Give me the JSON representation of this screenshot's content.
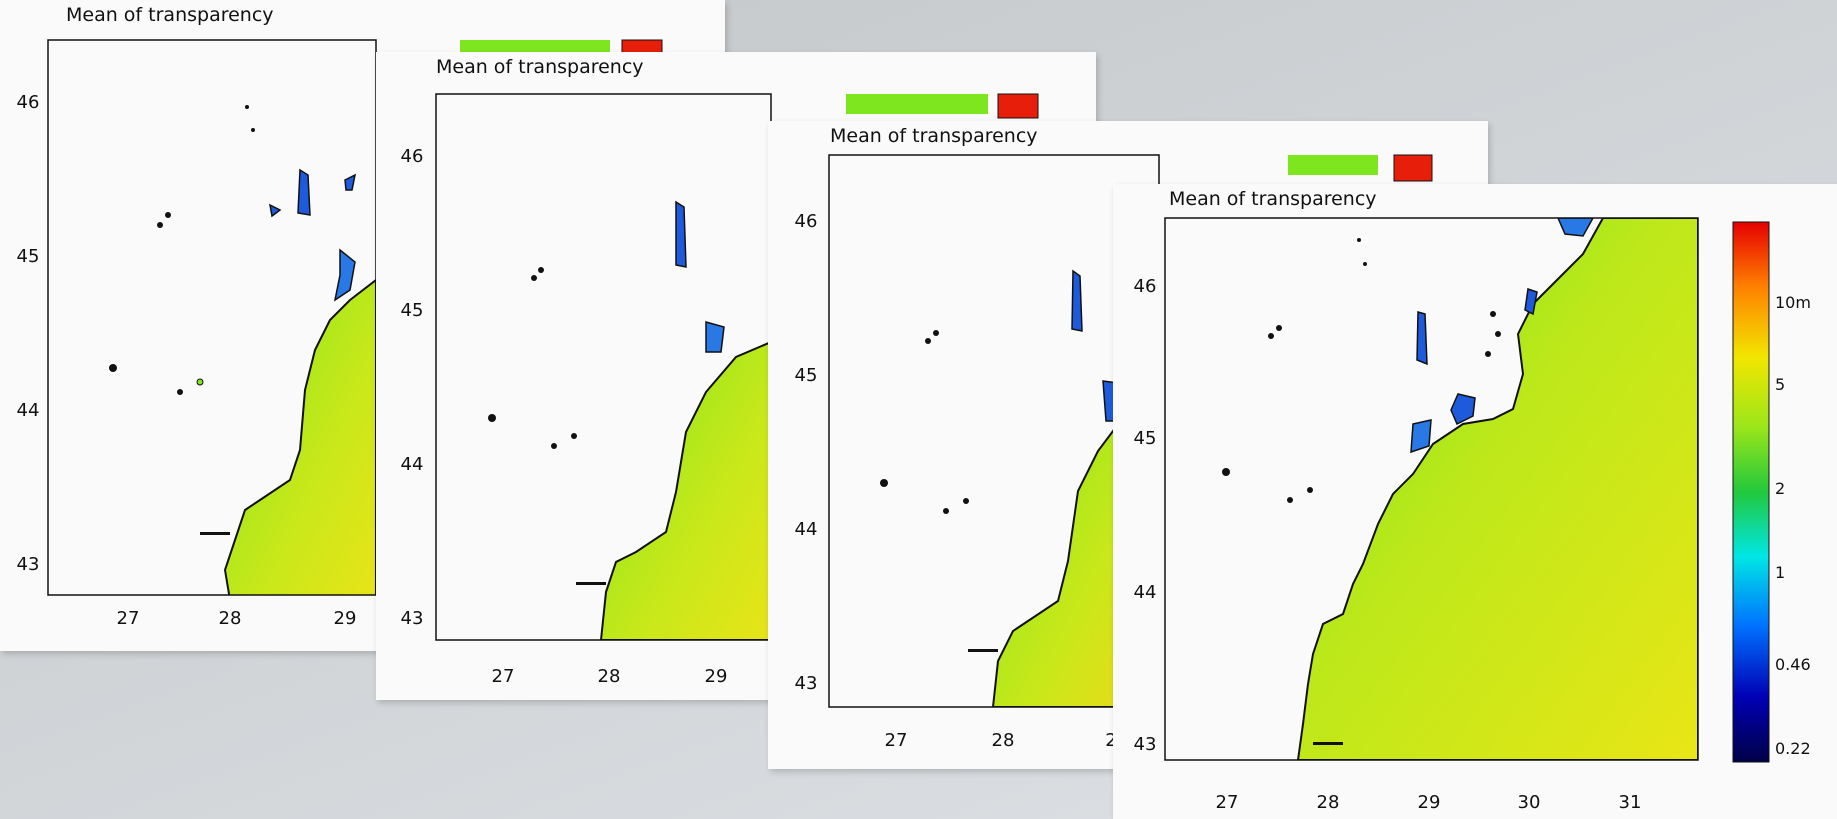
{
  "map_title": "Mean of transparency",
  "panels": [
    {
      "id": "p1",
      "lon_labels": [
        "27",
        "28",
        "29"
      ],
      "lat_labels": [
        "43",
        "44",
        "45",
        "46"
      ]
    },
    {
      "id": "p2",
      "lon_labels": [
        "27",
        "28",
        "29"
      ],
      "lat_labels": [
        "43",
        "44",
        "45",
        "46"
      ]
    },
    {
      "id": "p3",
      "lon_labels": [
        "27",
        "28",
        "2"
      ],
      "lat_labels": [
        "43",
        "44",
        "45",
        "46"
      ]
    },
    {
      "id": "p4",
      "lon_labels": [
        "27",
        "28",
        "29",
        "30",
        "31"
      ],
      "lat_labels": [
        "43",
        "44",
        "45",
        "46"
      ]
    }
  ],
  "colorbar": {
    "labels": [
      "10m",
      "5",
      "2",
      "1",
      "0.46",
      "0.22"
    ],
    "colors": [
      "#e60000",
      "#ff8000",
      "#f2e600",
      "#9be61a",
      "#22c83c",
      "#00e6e6",
      "#0070ff",
      "#0000b4",
      "#000046"
    ]
  },
  "map_colors": {
    "sea_near_shore": "#7ee61e",
    "sea_offshore": "#d8ea18",
    "sea_far": "#f2e215",
    "coast": "#111111",
    "water_body": "#1e6ee6",
    "land": "#fafafa"
  }
}
